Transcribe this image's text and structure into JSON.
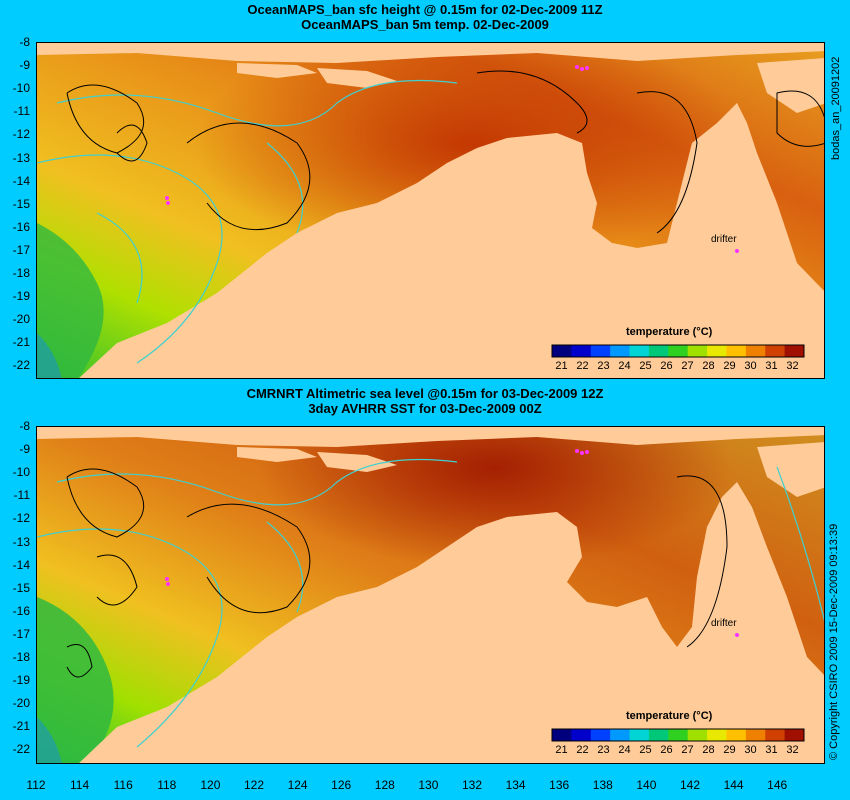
{
  "top": {
    "title1": "OceanMAPS_ban sfc height @ 0.15m for 02-Dec-2009 11Z",
    "title2": "OceanMAPS_ban 5m temp. 02-Dec-2009",
    "side_label": "bodas_an_20091202",
    "drifter_label": "drifter",
    "colorbar_title": "temperature (°C)"
  },
  "bottom": {
    "title1": "CMRNRT Altimetric sea level  @0.15m  for 03-Dec-2009 12Z",
    "title2": "3day AVHRR SST for 03-Dec-2009 00Z",
    "side_label": "© Copyright CSIRO 2009  15-Dec-2009 09:13:39",
    "drifter_label": "drifter",
    "colorbar_title": "temperature (°C)"
  },
  "y_ticks": [
    "-8",
    "-9",
    "-10",
    "-11",
    "-12",
    "-13",
    "-14",
    "-15",
    "-16",
    "-17",
    "-18",
    "-19",
    "-20",
    "-21",
    "-22"
  ],
  "x_ticks": [
    "112",
    "114",
    "116",
    "118",
    "120",
    "122",
    "124",
    "126",
    "128",
    "130",
    "132",
    "134",
    "136",
    "138",
    "140",
    "142",
    "144",
    "146"
  ],
  "colorbar": {
    "ticks": [
      "21",
      "22",
      "23",
      "24",
      "25",
      "26",
      "27",
      "28",
      "29",
      "30",
      "31",
      "32"
    ],
    "colors": [
      "#00007f",
      "#0000cc",
      "#0040ff",
      "#0099ff",
      "#00d4d4",
      "#00c878",
      "#30d020",
      "#a0e000",
      "#e8e800",
      "#ffc000",
      "#f08000",
      "#d04000",
      "#a01000"
    ]
  },
  "colors": {
    "background": "#00ccff",
    "land": "#ffcc99",
    "ocean_warm": "#f0a020",
    "ocean_hot": "#c04000",
    "ocean_cool": "#40c030",
    "contour_cyan": "#40d0d0",
    "contour_black": "#000000",
    "drifter": "#ff33ff"
  }
}
